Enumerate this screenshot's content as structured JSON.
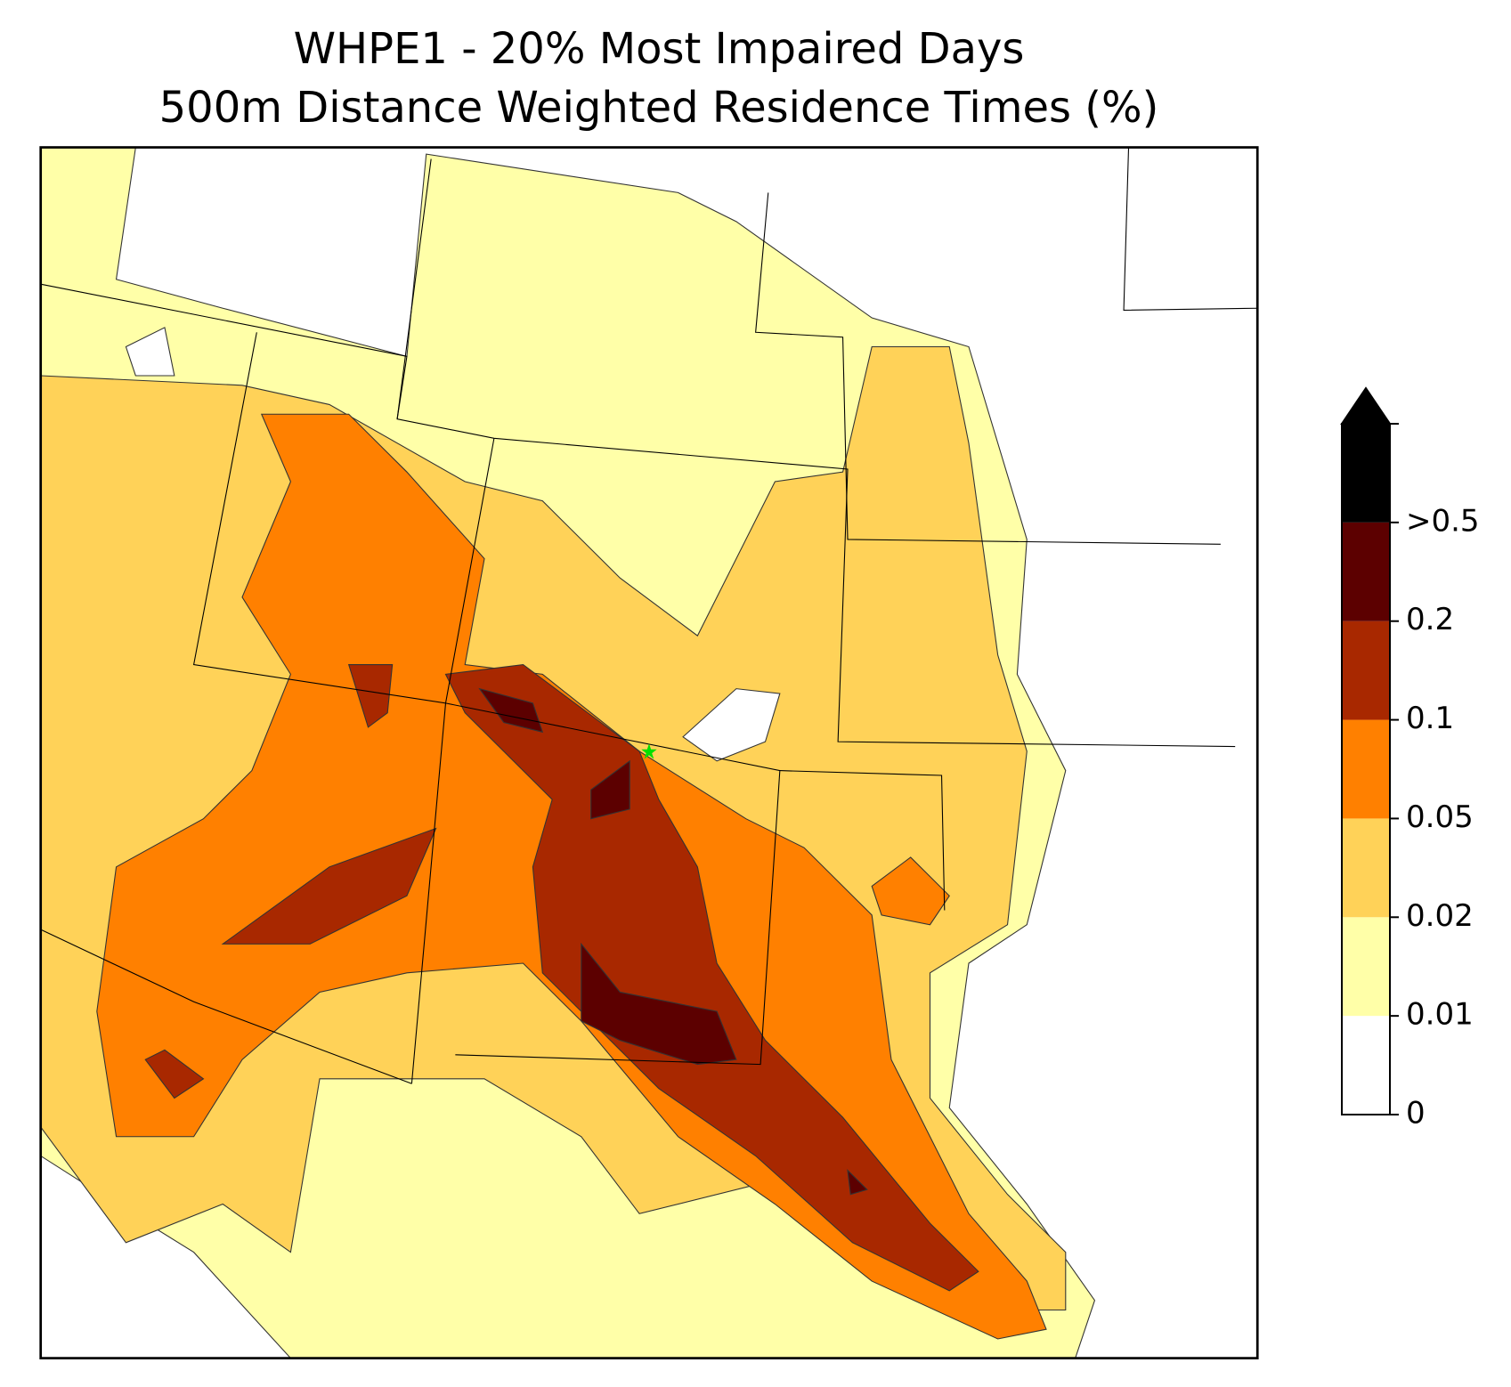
{
  "map": {
    "title": [
      "WHPE1 - 20% Most Impaired Days",
      "500m Distance Weighted Residence Times (%)"
    ],
    "colorbar": {
      "ticks": [
        0,
        0.01,
        0.02,
        0.05,
        0.1,
        0.2,
        {
          "value": 0.5,
          "label": ">0.5"
        }
      ],
      "colors": [
        "#ffffff",
        "#ffffa8",
        "#ffd258",
        "#ff8000",
        "#a82800",
        "#5c0000",
        "#000000"
      ],
      "extend": "max"
    }
  }
}
